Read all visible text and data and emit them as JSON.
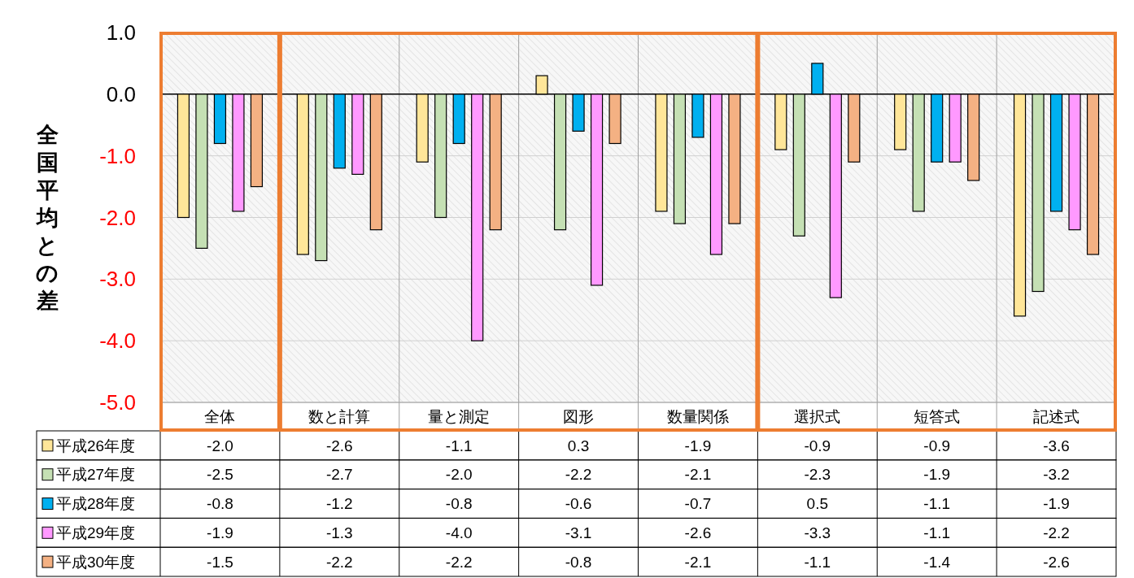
{
  "chart_data": {
    "type": "bar",
    "ylabel": "全国平均との差",
    "categories": [
      "全体",
      "数と計算",
      "量と測定",
      "図形",
      "数量関係",
      "選択式",
      "短答式",
      "記述式"
    ],
    "series": [
      {
        "name": "平成26年度",
        "color": "#ffe699",
        "values": [
          -2.0,
          -2.6,
          -1.1,
          0.3,
          -1.9,
          -0.9,
          -0.9,
          -3.6
        ],
        "value_labels": [
          "-2.0",
          "-2.6",
          "-1.1",
          "0.3",
          "-1.9",
          "-0.9",
          "-0.9",
          "-3.6"
        ]
      },
      {
        "name": "平成27年度",
        "color": "#c5e0b4",
        "values": [
          -2.5,
          -2.7,
          -2.0,
          -2.2,
          -2.1,
          -2.3,
          -1.9,
          -3.2
        ],
        "value_labels": [
          "-2.5",
          "-2.7",
          "-2.0",
          "-2.2",
          "-2.1",
          "-2.3",
          "-1.9",
          "-3.2"
        ]
      },
      {
        "name": "平成28年度",
        "color": "#00b0f0",
        "values": [
          -0.8,
          -1.2,
          -0.8,
          -0.6,
          -0.7,
          0.5,
          -1.1,
          -1.9
        ],
        "value_labels": [
          "-0.8",
          "-1.2",
          "-0.8",
          "-0.6",
          "-0.7",
          "0.5",
          "-1.1",
          "-1.9"
        ]
      },
      {
        "name": "平成29年度",
        "color": "#ff99ff",
        "values": [
          -1.9,
          -1.3,
          -4.0,
          -3.1,
          -2.6,
          -3.3,
          -1.1,
          -2.2
        ],
        "value_labels": [
          "-1.9",
          "-1.3",
          "-4.0",
          "-3.1",
          "-2.6",
          "-3.3",
          "-1.1",
          "-2.2"
        ]
      },
      {
        "name": "平成30年度",
        "color": "#f4b183",
        "values": [
          -1.5,
          -2.2,
          -2.2,
          -0.8,
          -2.1,
          -1.1,
          -1.4,
          -2.6
        ],
        "value_labels": [
          "-1.5",
          "-2.2",
          "-2.2",
          "-0.8",
          "-2.1",
          "-1.1",
          "-1.4",
          "-2.6"
        ]
      }
    ],
    "ylim": [
      -5,
      1
    ],
    "yticks": [
      {
        "value": 1,
        "label": "1.0"
      },
      {
        "value": 0,
        "label": "0.0"
      },
      {
        "value": -1,
        "label": "-1.0"
      },
      {
        "value": -2,
        "label": "-2.0"
      },
      {
        "value": -3,
        "label": "-3.0"
      },
      {
        "value": -4,
        "label": "-4.0"
      },
      {
        "value": -5,
        "label": "-5.0"
      }
    ],
    "grid": "y",
    "legend": "bottom"
  }
}
